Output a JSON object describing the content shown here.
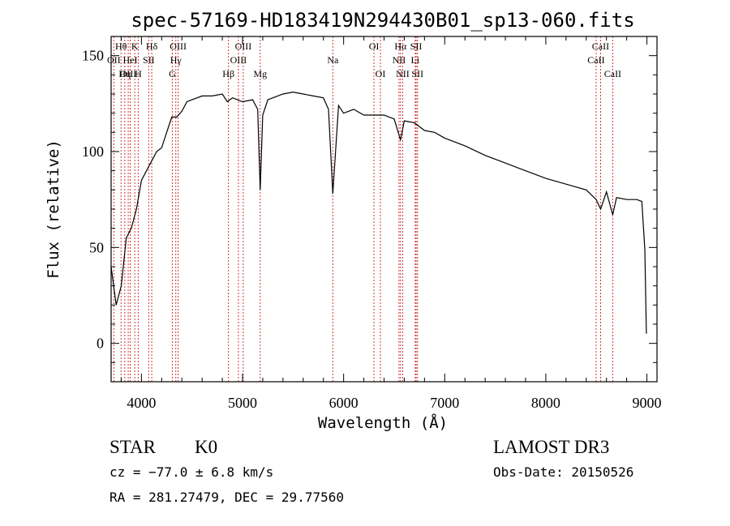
{
  "chart_data": {
    "type": "line",
    "title": "spec-57169-HD183419N294430B01_sp13-060.fits",
    "xlabel": "Wavelength (Å)",
    "ylabel": "Flux (relative)",
    "xlim": [
      3700,
      9100
    ],
    "ylim": [
      -20,
      160
    ],
    "xticks": [
      4000,
      5000,
      6000,
      7000,
      8000,
      9000
    ],
    "yticks": [
      0,
      50,
      100,
      150
    ],
    "series": [
      {
        "name": "flux",
        "x": [
          3700,
          3750,
          3800,
          3850,
          3900,
          3950,
          4000,
          4050,
          4100,
          4150,
          4200,
          4250,
          4300,
          4350,
          4400,
          4450,
          4500,
          4600,
          4700,
          4800,
          4850,
          4900,
          5000,
          5100,
          5150,
          5175,
          5200,
          5250,
          5300,
          5400,
          5500,
          5600,
          5700,
          5800,
          5850,
          5893,
          5950,
          6000,
          6100,
          6200,
          6300,
          6400,
          6500,
          6563,
          6600,
          6700,
          6800,
          6900,
          7000,
          7200,
          7400,
          7600,
          7800,
          8000,
          8200,
          8400,
          8498,
          8542,
          8600,
          8662,
          8700,
          8800,
          8900,
          8950,
          8980,
          8995
        ],
        "y": [
          40,
          20,
          30,
          55,
          60,
          70,
          85,
          90,
          95,
          100,
          102,
          110,
          118,
          118,
          121,
          126,
          127,
          129,
          129,
          130,
          126,
          128,
          126,
          127,
          122,
          80,
          119,
          127,
          128,
          130,
          131,
          130,
          129,
          128,
          122,
          78,
          124,
          120,
          122,
          119,
          119,
          119,
          117,
          106,
          116,
          115,
          111,
          110,
          107,
          103,
          98,
          94,
          90,
          86,
          83,
          80,
          75,
          70,
          79,
          67,
          76,
          75,
          75,
          74,
          49,
          5
        ]
      }
    ],
    "spectral_lines": [
      {
        "label": "Hθ",
        "wavelength": 3798,
        "row": 1
      },
      {
        "label": "OII",
        "wavelength": 3727,
        "row": 2
      },
      {
        "label": "OIII",
        "wavelength": 3869,
        "row": 3
      },
      {
        "label": "K",
        "wavelength": 3934,
        "row": 1
      },
      {
        "label": "HeI",
        "wavelength": 3889,
        "row": 2
      },
      {
        "label": "Hη",
        "wavelength": 3835,
        "row": 3
      },
      {
        "label": "SII",
        "wavelength": 4072,
        "row": 2
      },
      {
        "label": "H",
        "wavelength": 3968,
        "row": 3
      },
      {
        "label": "Hδ",
        "wavelength": 4102,
        "row": 1
      },
      {
        "label": "OIII",
        "wavelength": 4363,
        "row": 1
      },
      {
        "label": "Hγ",
        "wavelength": 4340,
        "row": 2
      },
      {
        "label": "G",
        "wavelength": 4305,
        "row": 3
      },
      {
        "label": "Hβ",
        "wavelength": 4861,
        "row": 3
      },
      {
        "label": "OIII",
        "wavelength": 5007,
        "row": 1
      },
      {
        "label": "OIII",
        "wavelength": 4959,
        "row": 2
      },
      {
        "label": "Mg",
        "wavelength": 5175,
        "row": 3
      },
      {
        "label": "Na",
        "wavelength": 5893,
        "row": 2
      },
      {
        "label": "OI",
        "wavelength": 6300,
        "row": 1
      },
      {
        "label": "OI",
        "wavelength": 6364,
        "row": 3
      },
      {
        "label": "Hα",
        "wavelength": 6563,
        "row": 1
      },
      {
        "label": "NII",
        "wavelength": 6548,
        "row": 2
      },
      {
        "label": "NII",
        "wavelength": 6584,
        "row": 3
      },
      {
        "label": "SII",
        "wavelength": 6717,
        "row": 1
      },
      {
        "label": "Li",
        "wavelength": 6708,
        "row": 2
      },
      {
        "label": "SII",
        "wavelength": 6731,
        "row": 3
      },
      {
        "label": "CaII",
        "wavelength": 8542,
        "row": 1
      },
      {
        "label": "CaII",
        "wavelength": 8498,
        "row": 2
      },
      {
        "label": "CaII",
        "wavelength": 8662,
        "row": 3
      }
    ]
  },
  "info": {
    "object_class": "STAR",
    "subclass": "K0",
    "survey": "LAMOST DR3",
    "cz": "cz = −77.0 ± 6.8 km/s",
    "obs_date": "Obs-Date: 20150526",
    "coords": "RA = 281.27479, DEC =  29.77560"
  },
  "colors": {
    "line_marker": "#cc2222",
    "spectrum": "#000000"
  }
}
